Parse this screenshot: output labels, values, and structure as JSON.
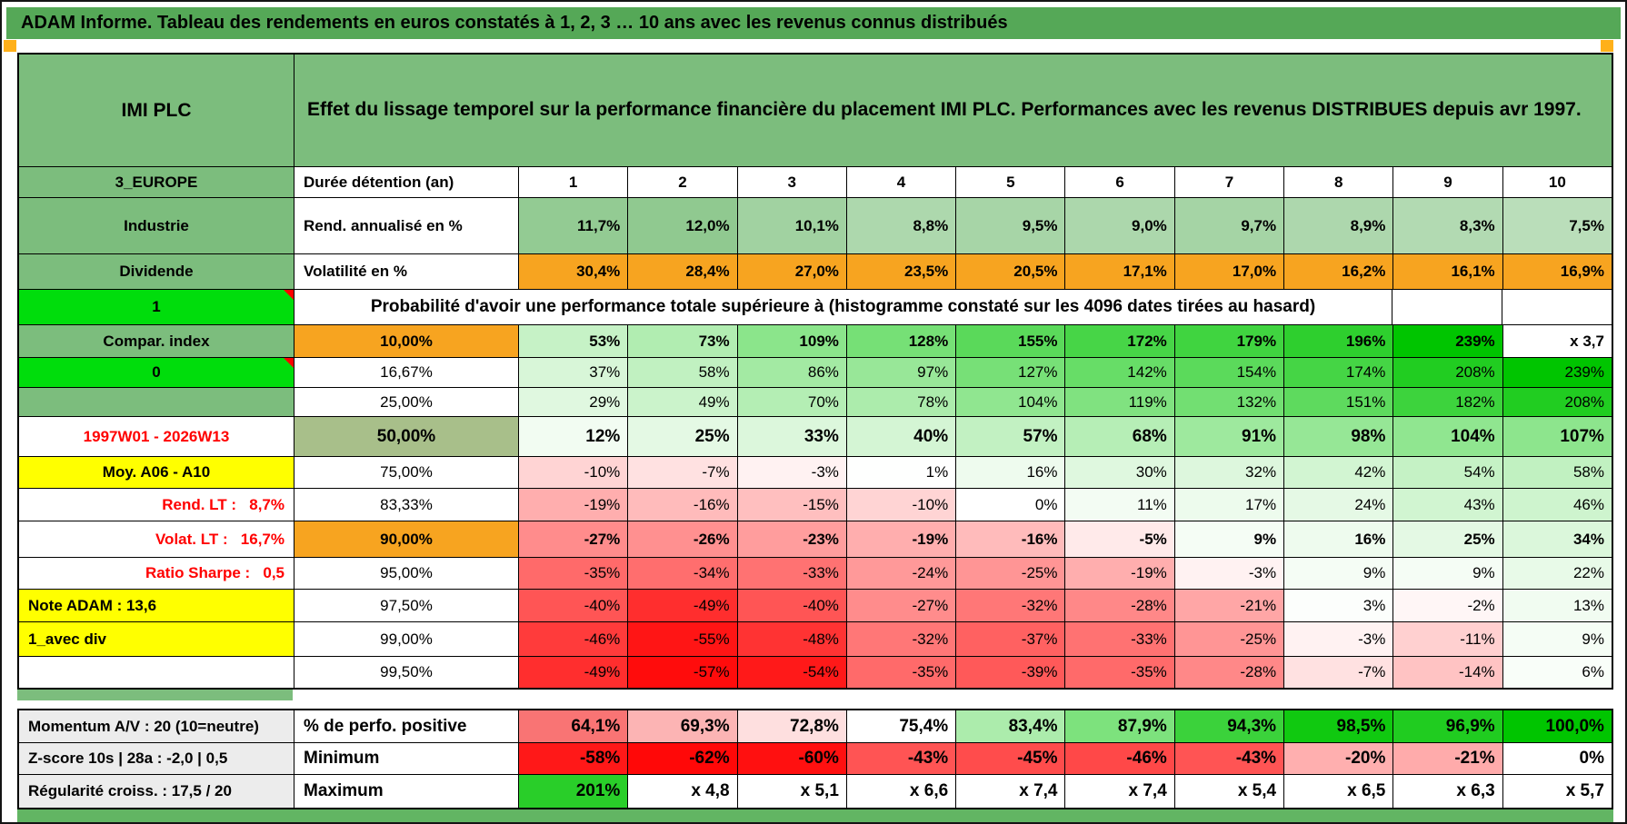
{
  "title": "ADAM Informe. Tableau des rendements en euros constatés à 1, 2, 3 … 10 ans avec les revenus connus distribués",
  "header": {
    "instrument": "IMI PLC",
    "description": "Effet du lissage temporel sur la performance financière du placement IMI PLC. Performances avec les revenus DISTRIBUES depuis avr 1997."
  },
  "colors": {
    "title_bar_green": "#55a857",
    "header_green": "#7cbd7d",
    "bright_green": "#00dd0c",
    "orange": "#f7a420",
    "yellow": "#ffff00",
    "sage": "#a8bf8a",
    "label_gray": "#ececec",
    "red_text": "#ff0000",
    "heat_green_max": "#00c500",
    "heat_red_max": "#ff0808",
    "corner_orange": "#ffb01a",
    "strip_green": "#62b563"
  },
  "chart_data": {
    "type": "table",
    "title": "Effet du lissage temporel sur la performance financière du placement IMI PLC. Performances avec les revenus DISTRIBUES depuis avr 1997.",
    "duration_label": "Durée détention (an)",
    "durations": [
      "1",
      "2",
      "3",
      "4",
      "5",
      "6",
      "7",
      "8",
      "9",
      "10"
    ],
    "main_rows": [
      {
        "label": "3_EUROPE",
        "header": "Durée détention (an)",
        "values": [
          "1",
          "2",
          "3",
          "4",
          "5",
          "6",
          "7",
          "8",
          "9",
          "10"
        ]
      },
      {
        "label": "Industrie",
        "header": "Rend. annualisé en %",
        "values": [
          "11,7%",
          "12,0%",
          "10,1%",
          "8,8%",
          "9,5%",
          "9,0%",
          "9,7%",
          "8,9%",
          "8,3%",
          "7,5%"
        ]
      },
      {
        "label": "Dividende",
        "header": "Volatilité en %",
        "values": [
          "30,4%",
          "28,4%",
          "27,0%",
          "23,5%",
          "20,5%",
          "17,1%",
          "17,0%",
          "16,2%",
          "16,1%",
          "16,9%"
        ]
      },
      {
        "label": "1",
        "merged": "Probabilité d'avoir une performance totale supérieure à (histogramme constaté sur les 4096 dates tirées au hasard)",
        "values": [
          "",
          ""
        ]
      },
      {
        "label": "Compar. index",
        "header": "10,00%",
        "values": [
          "53%",
          "73%",
          "109%",
          "128%",
          "155%",
          "172%",
          "179%",
          "196%",
          "239%",
          "x 3,7"
        ]
      },
      {
        "label": "0",
        "header": "16,67%",
        "values": [
          "37%",
          "58%",
          "86%",
          "97%",
          "127%",
          "142%",
          "154%",
          "174%",
          "208%",
          "239%"
        ]
      },
      {
        "label": "",
        "header": "25,00%",
        "values": [
          "29%",
          "49%",
          "70%",
          "78%",
          "104%",
          "119%",
          "132%",
          "151%",
          "182%",
          "208%"
        ]
      },
      {
        "label": "1997W01 - 2026W13",
        "header": "50,00%",
        "values": [
          "12%",
          "25%",
          "33%",
          "40%",
          "57%",
          "68%",
          "91%",
          "98%",
          "104%",
          "107%"
        ]
      },
      {
        "label": "Moy. A06 - A10",
        "header": "75,00%",
        "values": [
          "-10%",
          "-7%",
          "-3%",
          "1%",
          "16%",
          "30%",
          "32%",
          "42%",
          "54%",
          "58%"
        ]
      },
      {
        "label": "Rend. LT :   8,7%",
        "header": "83,33%",
        "values": [
          "-19%",
          "-16%",
          "-15%",
          "-10%",
          "0%",
          "11%",
          "17%",
          "24%",
          "43%",
          "46%"
        ]
      },
      {
        "label": "Volat. LT :   16,7%",
        "header": "90,00%",
        "values": [
          "-27%",
          "-26%",
          "-23%",
          "-19%",
          "-16%",
          "-5%",
          "9%",
          "16%",
          "25%",
          "34%"
        ]
      },
      {
        "label": "Ratio Sharpe :   0,5",
        "header": "95,00%",
        "values": [
          "-35%",
          "-34%",
          "-33%",
          "-24%",
          "-25%",
          "-19%",
          "-3%",
          "9%",
          "9%",
          "22%"
        ]
      },
      {
        "label": "Note ADAM : 13,6",
        "header": "97,50%",
        "values": [
          "-40%",
          "-49%",
          "-40%",
          "-27%",
          "-32%",
          "-28%",
          "-21%",
          "3%",
          "-2%",
          "13%"
        ]
      },
      {
        "label": "1_avec div",
        "header": "99,00%",
        "values": [
          "-46%",
          "-55%",
          "-48%",
          "-32%",
          "-37%",
          "-33%",
          "-25%",
          "-3%",
          "-11%",
          "9%"
        ]
      },
      {
        "label": "",
        "header": "99,50%",
        "values": [
          "-49%",
          "-57%",
          "-54%",
          "-35%",
          "-39%",
          "-35%",
          "-28%",
          "-7%",
          "-14%",
          "6%"
        ]
      }
    ],
    "stat_rows": [
      {
        "label": "Momentum A/V : 20 (10=neutre)",
        "header": "% de perfo. positive",
        "values": [
          "64,1%",
          "69,3%",
          "72,8%",
          "75,4%",
          "83,4%",
          "87,9%",
          "94,3%",
          "98,5%",
          "96,9%",
          "100,0%"
        ]
      },
      {
        "label": "Z-score 10s | 28a : -2,0 | 0,5",
        "header": "Minimum",
        "values": [
          "-58%",
          "-62%",
          "-60%",
          "-43%",
          "-45%",
          "-46%",
          "-43%",
          "-20%",
          "-21%",
          "0%"
        ]
      },
      {
        "label": "Régularité croiss. : 17,5 / 20",
        "header": "Maximum",
        "values": [
          "201%",
          "x 4,8",
          "x 5,1",
          "x 6,6",
          "x 7,4",
          "x 7,4",
          "x 5,4",
          "x 6,5",
          "x 6,3",
          "x 5,7"
        ]
      }
    ]
  }
}
